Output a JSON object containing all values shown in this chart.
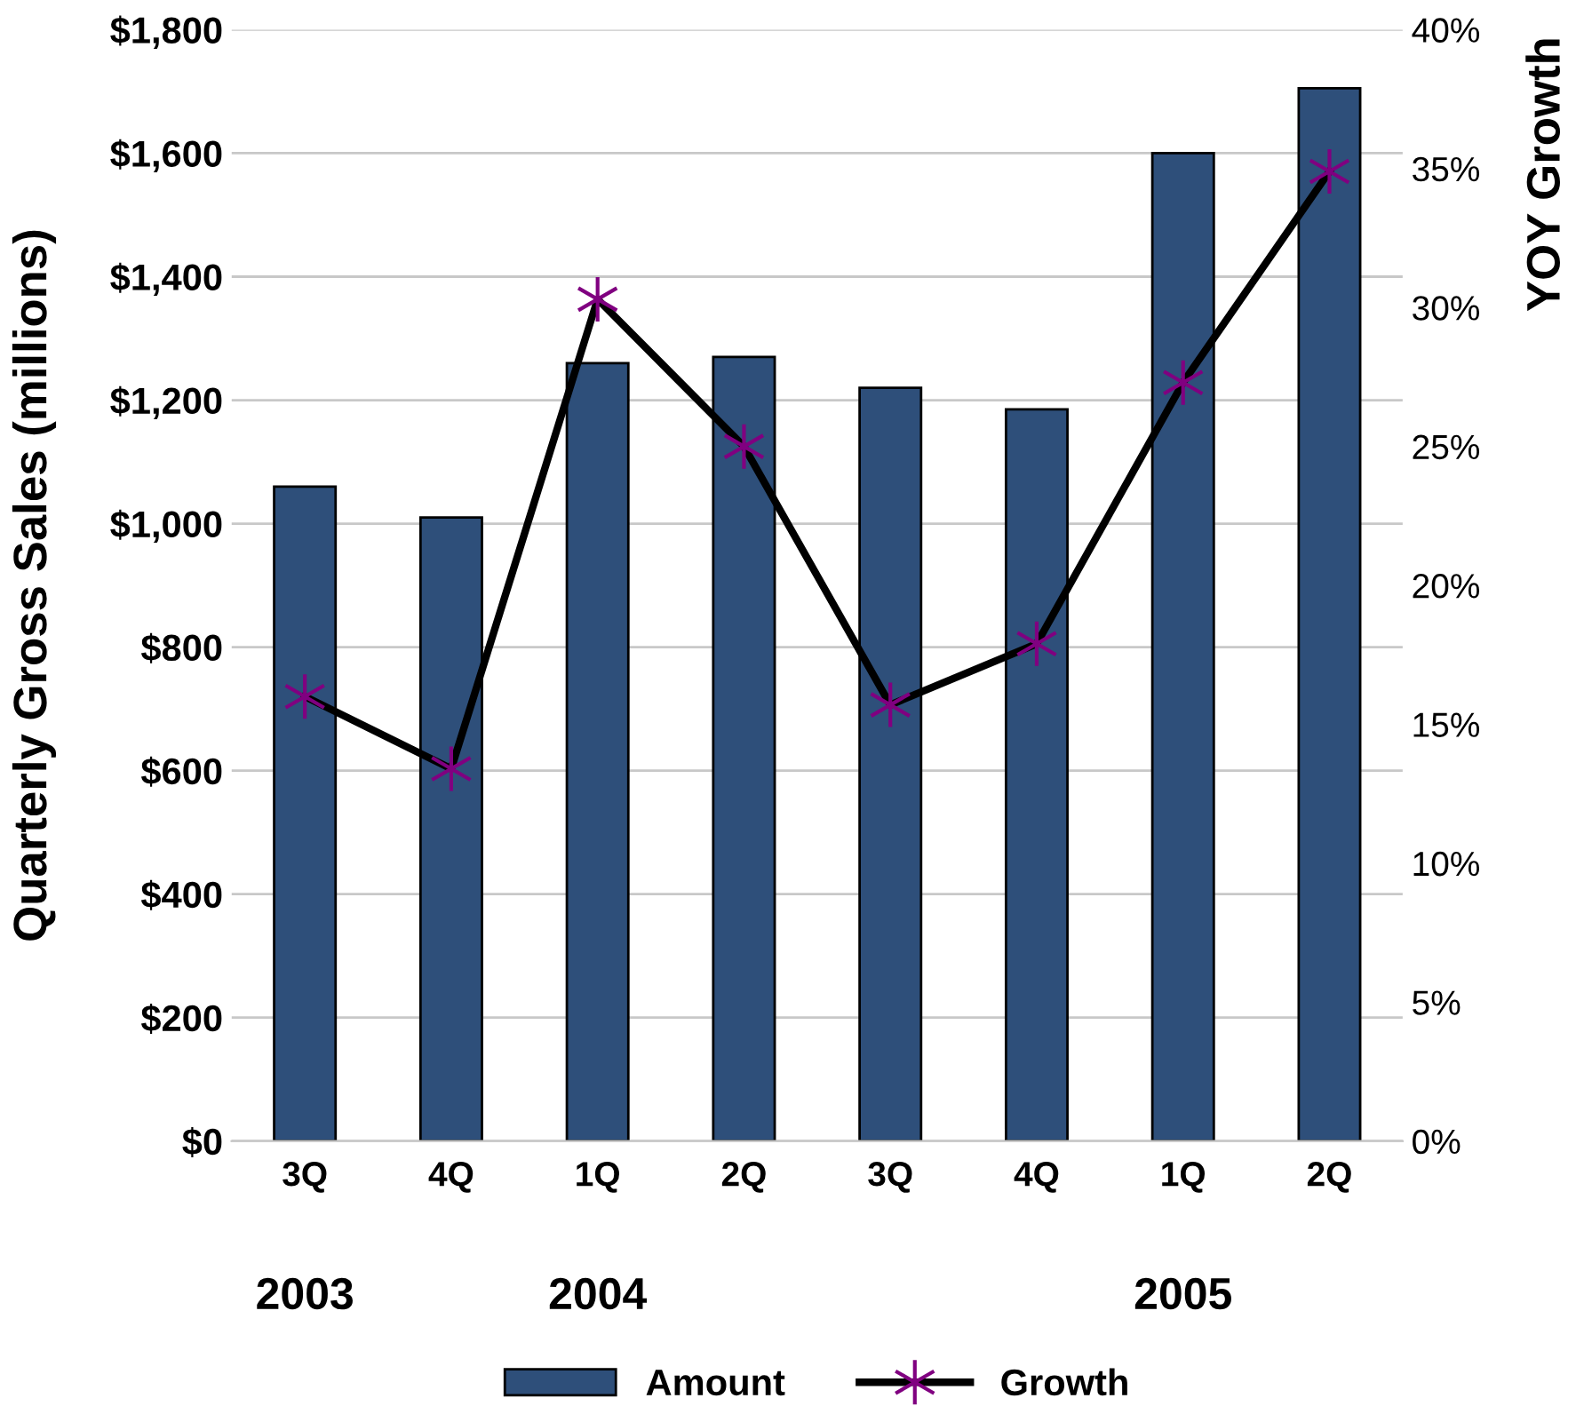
{
  "chart_data": {
    "type": "bar",
    "ylabel": "Quarterly Gross Sales (millions)",
    "y2label": "YOY Growth",
    "categories": [
      "3Q",
      "4Q",
      "1Q",
      "2Q",
      "3Q",
      "4Q",
      "1Q",
      "2Q"
    ],
    "series": [
      {
        "name": "Amount",
        "color": "#2e4f7a",
        "values": [
          1060,
          1010,
          1260,
          1270,
          1220,
          1185,
          1600,
          1705
        ]
      },
      {
        "name": "Growth",
        "type": "line",
        "axis": "y2",
        "color": "#000000",
        "colors": [
          "#800080",
          "#800080",
          "#800080",
          "#800080",
          "#800080",
          "#800080",
          "#800080",
          "#800080"
        ],
        "marker": "cross",
        "values": [
          16.0,
          13.4,
          30.3,
          25.0,
          15.7,
          17.9,
          27.3,
          34.9
        ]
      }
    ],
    "ylim": [
      0,
      1800
    ],
    "yticks": [
      {
        "value": 0,
        "label": "$0"
      },
      {
        "value": 200,
        "label": "$200"
      },
      {
        "value": 400,
        "label": "$400"
      },
      {
        "value": 600,
        "label": "$600"
      },
      {
        "value": 800,
        "label": "$800"
      },
      {
        "value": 1000,
        "label": "$1,000"
      },
      {
        "value": 1200,
        "label": "$1,200"
      },
      {
        "value": 1400,
        "label": "$1,400"
      },
      {
        "value": 1600,
        "label": "$1,600"
      },
      {
        "value": 1800,
        "label": "$1,800"
      }
    ],
    "y2lim": [
      0,
      40
    ],
    "y2ticks": [
      {
        "value": 0,
        "label": "0%"
      },
      {
        "value": 5,
        "label": "5%"
      },
      {
        "value": 10,
        "label": "10%"
      },
      {
        "value": 15,
        "label": "15%"
      },
      {
        "value": 20,
        "label": "20%"
      },
      {
        "value": 25,
        "label": "25%"
      },
      {
        "value": 30,
        "label": "30%"
      },
      {
        "value": 35,
        "label": "35%"
      },
      {
        "value": 40,
        "label": "40%"
      }
    ],
    "annotations": [
      "2003",
      "2004",
      "2005"
    ],
    "grid": "y",
    "legend": "bottom"
  }
}
